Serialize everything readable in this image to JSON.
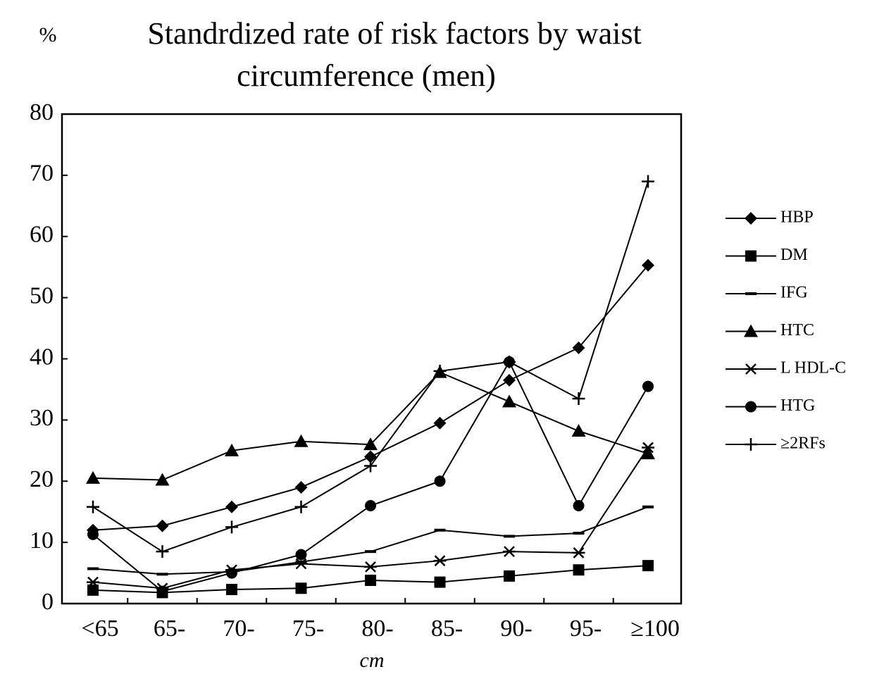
{
  "chart_data": {
    "type": "line",
    "title": [
      "Standrdized rate of risk factors by waist",
      "circumference (men)"
    ],
    "y_label": "%",
    "x_label": "cm",
    "categories": [
      "<65",
      "65-",
      "70-",
      "75-",
      "80-",
      "85-",
      "90-",
      "95-",
      "≥100"
    ],
    "ylim": [
      0,
      80
    ],
    "yticks": [
      0,
      10,
      20,
      30,
      40,
      50,
      60,
      70,
      80
    ],
    "series": [
      {
        "name": "HBP",
        "color": "#000000",
        "marker": "diamond",
        "values": [
          12,
          12.7,
          15.8,
          19,
          24,
          29.5,
          36.5,
          41.8,
          55.3
        ]
      },
      {
        "name": "DM",
        "color": "#000000",
        "marker": "square",
        "values": [
          2.2,
          1.8,
          2.3,
          2.5,
          3.8,
          3.5,
          4.5,
          5.5,
          6.2
        ]
      },
      {
        "name": "IFG",
        "color": "#000000",
        "marker": "dash",
        "values": [
          5.7,
          4.8,
          5.2,
          6.8,
          8.5,
          12,
          11,
          11.5,
          15.8
        ]
      },
      {
        "name": "HTC",
        "color": "#000000",
        "marker": "triangle",
        "values": [
          20.5,
          20.2,
          25,
          26.5,
          26,
          37.8,
          33,
          28.2,
          24.5
        ]
      },
      {
        "name": "L HDL-C",
        "color": "#000000",
        "marker": "asterisk",
        "values": [
          3.5,
          2.5,
          5.5,
          6.5,
          6,
          7,
          8.5,
          8.3,
          25.5
        ]
      },
      {
        "name": "HTG",
        "color": "#000000",
        "marker": "circle",
        "values": [
          11.3,
          2,
          5,
          8,
          16,
          20,
          39.5,
          16,
          35.5
        ]
      },
      {
        "name": "≥2RFs",
        "color": "#000000",
        "marker": "plus",
        "values": [
          15.8,
          8.5,
          12.5,
          15.8,
          22.5,
          38,
          39.5,
          33.5,
          69
        ]
      }
    ]
  }
}
